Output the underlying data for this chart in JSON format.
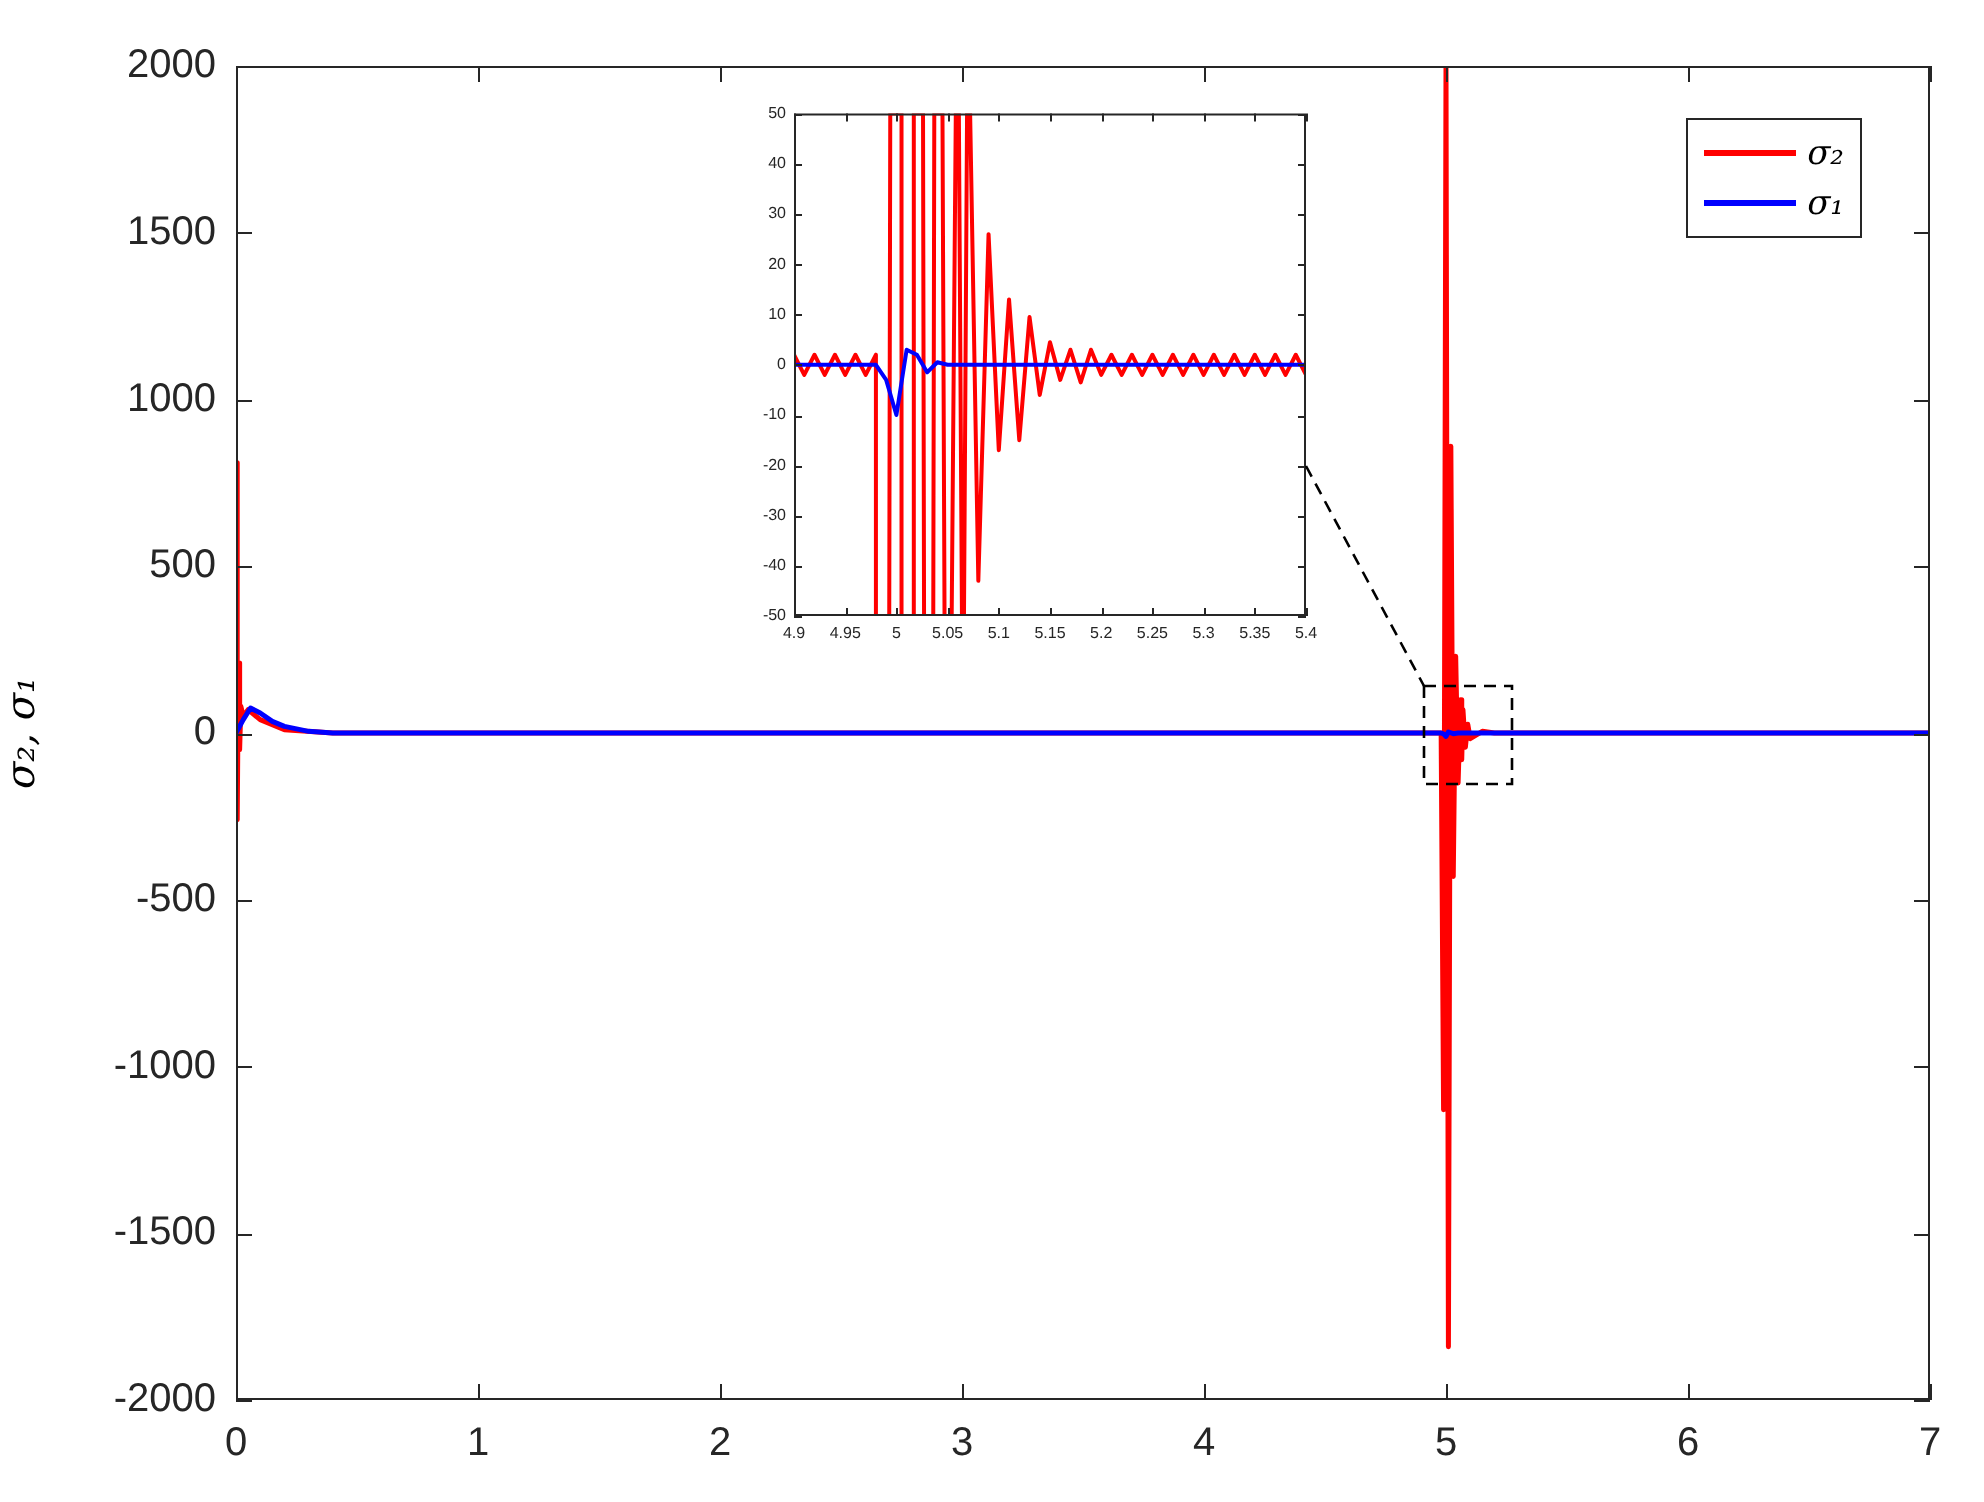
{
  "chart_data": [
    {
      "type": "line",
      "ylabel": "σ₂, σ₁",
      "xlim": [
        0,
        7
      ],
      "xticks": [
        0,
        1,
        2,
        3,
        4,
        5,
        6,
        7
      ],
      "ylim": [
        -2000,
        2000
      ],
      "yticks": [
        -2000,
        -1500,
        -1000,
        -500,
        0,
        500,
        1000,
        1500,
        2000
      ],
      "legend": "top right",
      "line_style": "solid",
      "series": [
        {
          "name": "σ₂",
          "color": "#ff0000",
          "x": [
            0,
            0.005,
            0.01,
            0.015,
            0.02,
            0.03,
            0.05,
            0.1,
            0.2,
            0.4,
            4.98,
            4.99,
            5.0,
            5.01,
            5.02,
            5.03,
            5.04,
            5.05,
            5.06,
            5.065,
            5.07,
            5.08,
            5.09,
            5.1,
            5.15,
            5.2,
            7
          ],
          "values": [
            810,
            -260,
            210,
            -50,
            80,
            50,
            70,
            40,
            10,
            0,
            0,
            -1130,
            2000,
            -1840,
            860,
            -430,
            230,
            -150,
            100,
            -80,
            70,
            -43,
            26,
            -17,
            5,
            0,
            0
          ]
        },
        {
          "name": "σ₁",
          "color": "#0000ff",
          "x": [
            0,
            0.03,
            0.06,
            0.1,
            0.15,
            0.2,
            0.3,
            0.4,
            4.98,
            4.99,
            5.0,
            5.01,
            5.03,
            5.05,
            7
          ],
          "values": [
            0,
            40,
            75,
            60,
            35,
            20,
            5,
            0,
            0,
            -3,
            -10,
            3,
            -2,
            0,
            0
          ]
        }
      ]
    },
    {
      "type": "line",
      "xlim": [
        4.9,
        5.4
      ],
      "xticks": [
        4.9,
        4.95,
        5,
        5.05,
        5.1,
        5.15,
        5.2,
        5.25,
        5.3,
        5.35,
        5.4
      ],
      "ylim": [
        -50,
        50
      ],
      "yticks": [
        -50,
        -40,
        -30,
        -20,
        -10,
        0,
        10,
        20,
        30,
        40,
        50
      ],
      "line_style": "solid",
      "series": [
        {
          "color": "#ff0000",
          "x": [
            4.9,
            4.91,
            4.92,
            4.93,
            4.94,
            4.95,
            4.96,
            4.97,
            4.98,
            4.98,
            4.993,
            4.994,
            5.005,
            5.005,
            5.017,
            5.017,
            5.026,
            5.027,
            5.036,
            5.037,
            5.045,
            5.047,
            5.054,
            5.058,
            5.061,
            5.064,
            5.066,
            5.069,
            5.072,
            5.08,
            5.09,
            5.1,
            5.11,
            5.12,
            5.13,
            5.14,
            5.15,
            5.16,
            5.17,
            5.18,
            5.19,
            5.2,
            5.21,
            5.22,
            5.23,
            5.24,
            5.25,
            5.26,
            5.27,
            5.28,
            5.29,
            5.3,
            5.31,
            5.32,
            5.33,
            5.34,
            5.35,
            5.36,
            5.37,
            5.38,
            5.39,
            5.4
          ],
          "values": [
            2,
            -2,
            2,
            -2,
            2,
            -2,
            2,
            -2,
            2,
            -50,
            -50,
            50,
            50,
            -50,
            -50,
            50,
            50,
            -50,
            -50,
            50,
            50,
            -50,
            -50,
            50,
            50,
            -50,
            -50,
            50,
            50,
            -43,
            26,
            -17,
            13,
            -15,
            9.5,
            -6,
            4.5,
            -3,
            3,
            -3.5,
            3,
            -2,
            2,
            -2,
            2,
            -2,
            2,
            -2,
            2,
            -2,
            2,
            -2,
            2,
            -2,
            2,
            -2,
            2,
            -2,
            2,
            -2,
            2,
            -2
          ]
        },
        {
          "color": "#0000ff",
          "x": [
            4.9,
            4.98,
            4.99,
            5.0,
            5.01,
            5.02,
            5.03,
            5.04,
            5.05,
            5.4
          ],
          "values": [
            0,
            0,
            -3,
            -10,
            3,
            2,
            -1.5,
            0.5,
            0,
            0
          ]
        }
      ]
    }
  ]
}
